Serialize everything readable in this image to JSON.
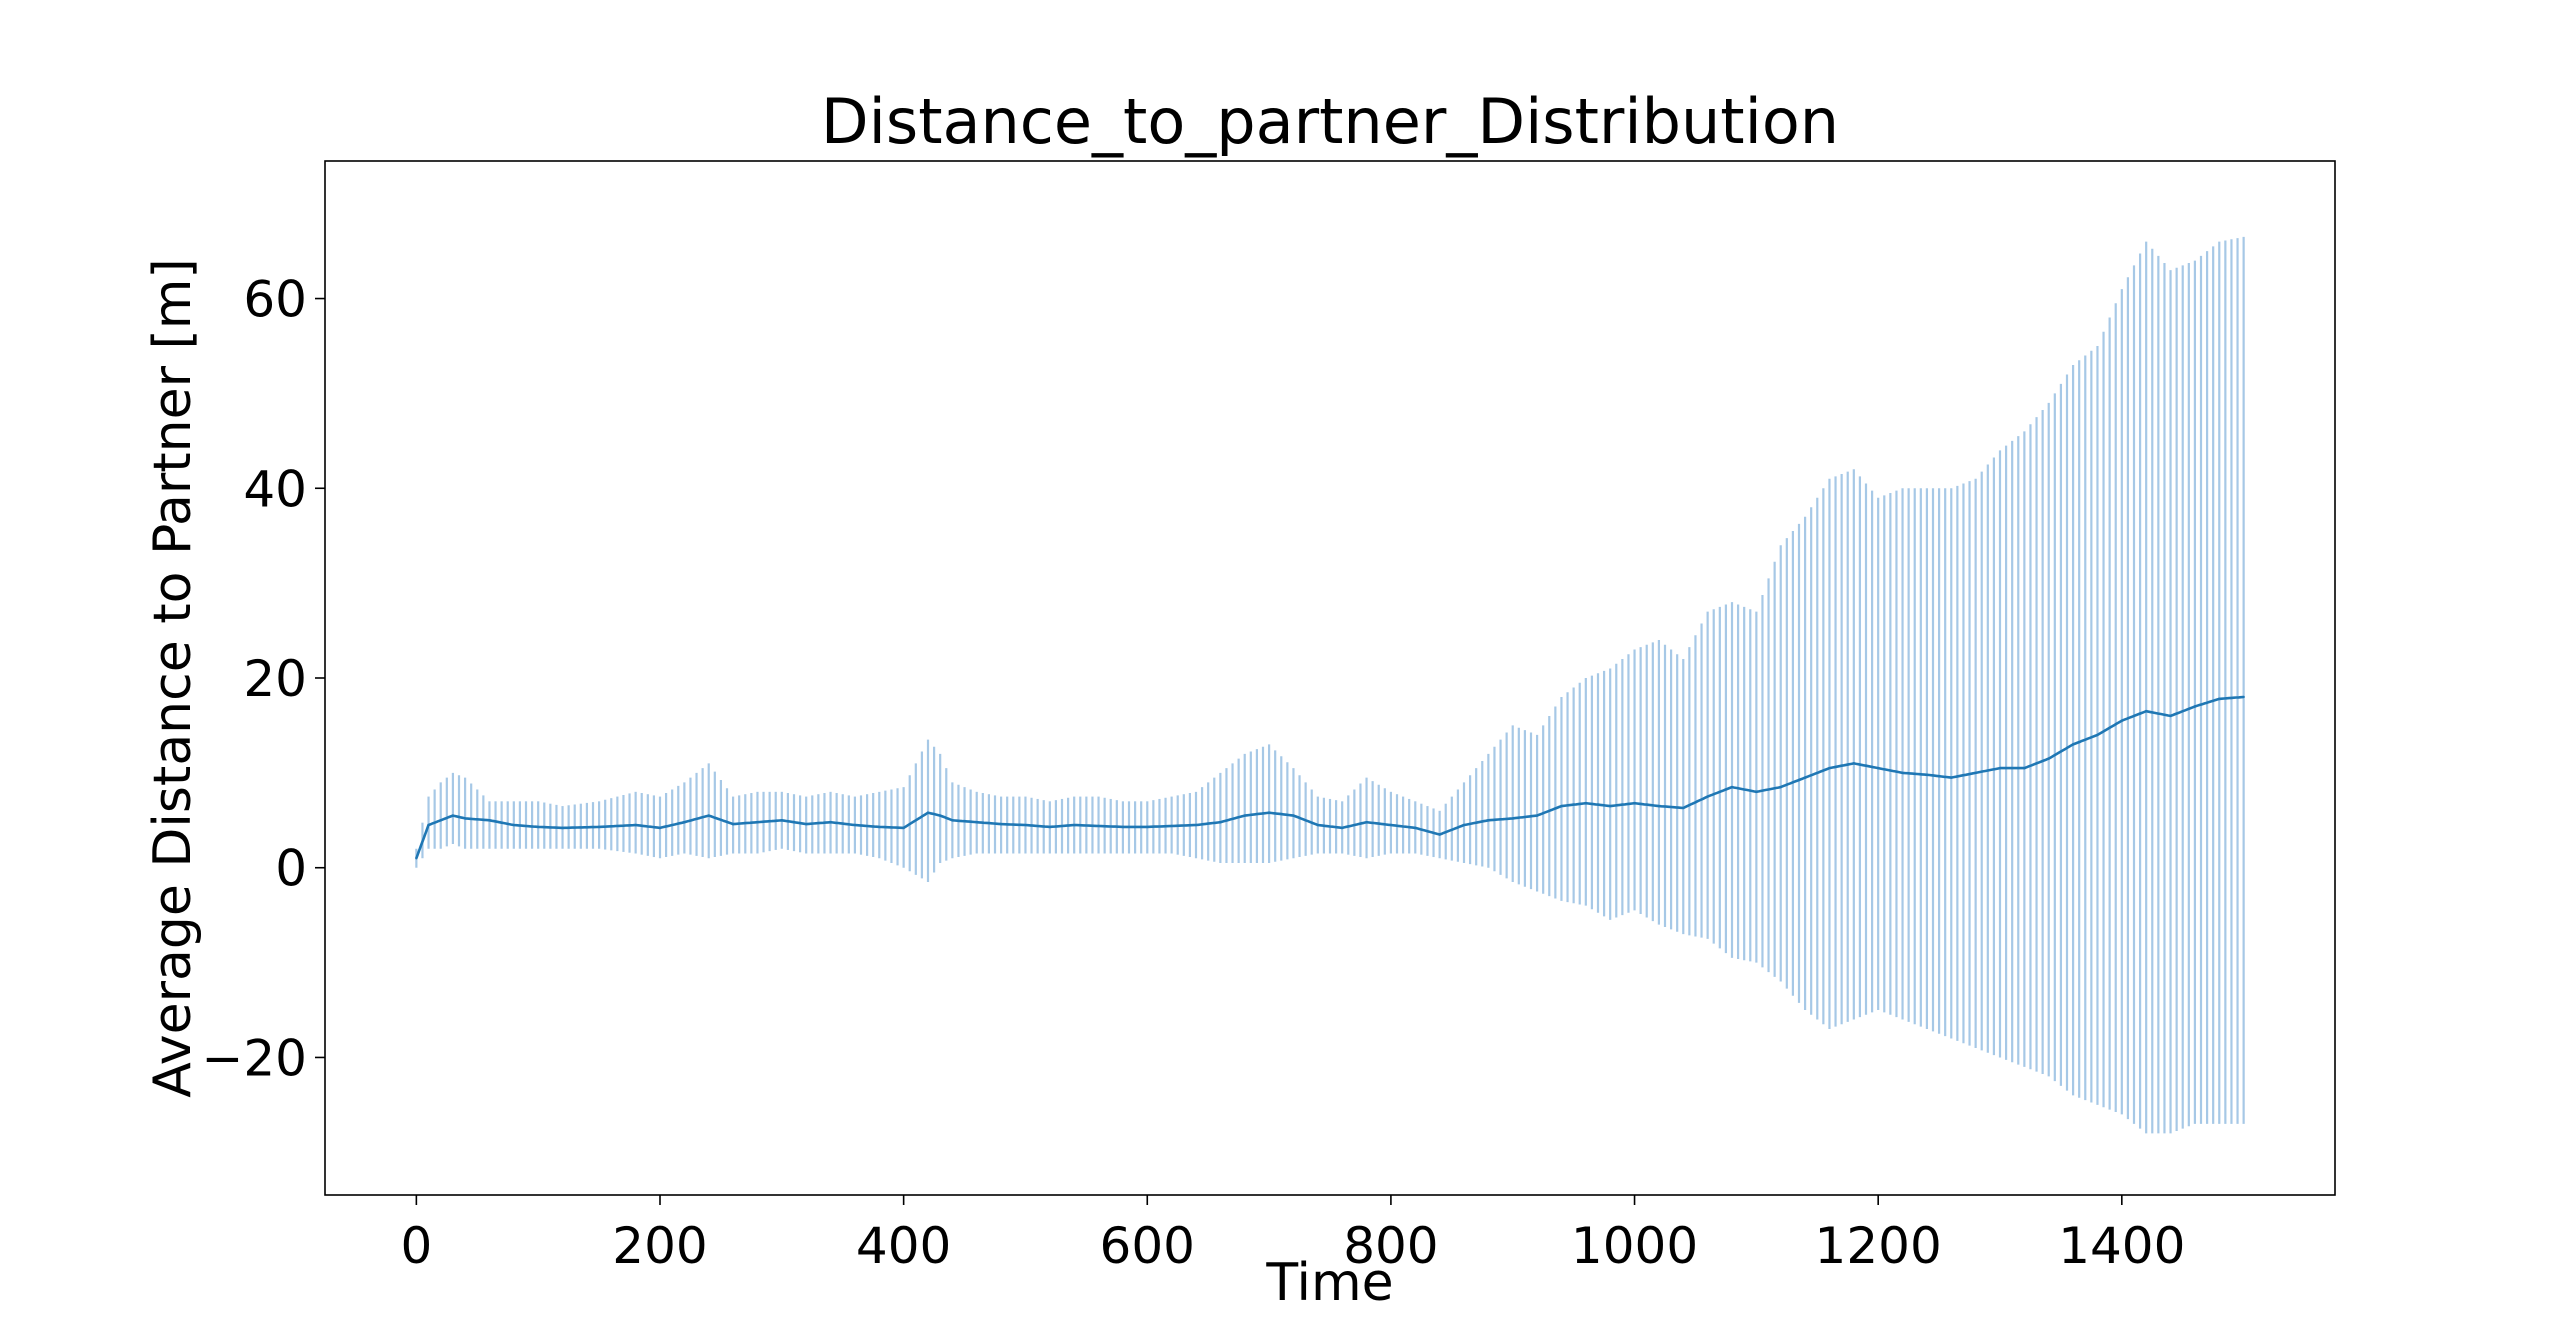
{
  "chart_data": {
    "type": "line",
    "title": "Distance_to_partner_Distribution",
    "xlabel": "Time",
    "ylabel": "Average Distance to Partner [m]",
    "xlim": [
      -75,
      1575
    ],
    "ylim": [
      -34.5,
      74.5
    ],
    "x_ticks": [
      0,
      200,
      400,
      600,
      800,
      1000,
      1200,
      1400
    ],
    "y_ticks": [
      -20,
      0,
      20,
      40,
      60
    ],
    "x_tick_labels": [
      "0",
      "200",
      "400",
      "600",
      "800",
      "1000",
      "1200",
      "1400"
    ],
    "y_tick_labels": [
      "−20",
      "0",
      "20",
      "40",
      "60"
    ],
    "grid": false,
    "series": [
      {
        "color": "#1f77b4",
        "band_color": "#a6c8e6",
        "x": [
          0,
          10,
          20,
          30,
          40,
          60,
          80,
          100,
          120,
          150,
          180,
          200,
          220,
          240,
          260,
          280,
          300,
          320,
          340,
          360,
          380,
          400,
          420,
          430,
          440,
          460,
          480,
          500,
          520,
          540,
          560,
          580,
          600,
          620,
          640,
          660,
          680,
          700,
          720,
          740,
          760,
          780,
          800,
          820,
          840,
          860,
          880,
          900,
          920,
          940,
          960,
          980,
          1000,
          1020,
          1040,
          1060,
          1080,
          1100,
          1120,
          1140,
          1160,
          1180,
          1200,
          1220,
          1240,
          1260,
          1280,
          1300,
          1320,
          1340,
          1360,
          1380,
          1400,
          1420,
          1440,
          1460,
          1480,
          1500
        ],
        "mean": [
          1.0,
          4.5,
          5.0,
          5.5,
          5.2,
          5.0,
          4.5,
          4.3,
          4.2,
          4.3,
          4.5,
          4.2,
          4.8,
          5.5,
          4.6,
          4.8,
          5.0,
          4.6,
          4.8,
          4.5,
          4.3,
          4.2,
          5.8,
          5.5,
          5.0,
          4.8,
          4.6,
          4.5,
          4.3,
          4.5,
          4.4,
          4.3,
          4.3,
          4.4,
          4.5,
          4.8,
          5.5,
          5.8,
          5.5,
          4.5,
          4.2,
          4.8,
          4.5,
          4.2,
          3.5,
          4.5,
          5.0,
          5.2,
          5.5,
          6.5,
          6.8,
          6.5,
          6.8,
          6.5,
          6.3,
          7.5,
          8.5,
          8.0,
          8.5,
          9.5,
          10.5,
          11.0,
          10.5,
          10.0,
          9.8,
          9.5,
          10.0,
          10.5,
          10.5,
          11.5,
          13.0,
          14.0,
          15.5,
          16.5,
          16.0,
          17.0,
          17.8,
          18.0
        ],
        "upper": [
          2.0,
          7.5,
          9.0,
          10.0,
          9.5,
          7.0,
          7.0,
          7.0,
          6.5,
          7.0,
          8.0,
          7.5,
          9.0,
          11.0,
          7.5,
          8.0,
          8.0,
          7.5,
          8.0,
          7.5,
          8.0,
          8.5,
          13.5,
          12.0,
          9.0,
          8.0,
          7.5,
          7.5,
          7.0,
          7.5,
          7.5,
          7.0,
          7.0,
          7.5,
          8.0,
          10.0,
          12.0,
          13.0,
          10.5,
          7.5,
          7.0,
          9.5,
          8.0,
          7.0,
          6.0,
          9.0,
          12.0,
          15.0,
          14.0,
          18.0,
          20.0,
          21.0,
          23.0,
          24.0,
          22.0,
          27.0,
          28.0,
          27.0,
          34.0,
          37.0,
          41.0,
          42.0,
          39.0,
          40.0,
          40.0,
          40.0,
          41.0,
          44.0,
          46.0,
          49.0,
          53.0,
          55.0,
          61.0,
          66.0,
          63.0,
          64.0,
          66.0,
          66.5
        ],
        "lower": [
          0.0,
          2.0,
          2.0,
          2.5,
          2.0,
          2.0,
          2.0,
          2.0,
          2.0,
          2.0,
          1.5,
          1.0,
          1.5,
          1.0,
          1.5,
          1.5,
          2.0,
          1.5,
          1.5,
          1.5,
          1.0,
          0.0,
          -1.5,
          0.5,
          1.0,
          1.5,
          1.5,
          1.5,
          1.5,
          1.5,
          1.5,
          1.5,
          1.5,
          1.5,
          1.0,
          0.5,
          0.5,
          0.5,
          1.0,
          1.5,
          1.5,
          1.0,
          1.5,
          1.5,
          1.0,
          0.5,
          0.0,
          -1.5,
          -2.5,
          -3.5,
          -4.0,
          -5.5,
          -4.5,
          -6.0,
          -7.0,
          -7.5,
          -9.5,
          -10.0,
          -12.0,
          -15.0,
          -17.0,
          -16.0,
          -15.0,
          -16.0,
          -17.0,
          -18.0,
          -19.0,
          -20.0,
          -21.0,
          -22.0,
          -24.0,
          -25.0,
          -26.0,
          -28.0,
          -28.0,
          -27.0,
          -27.0,
          -27.0
        ]
      }
    ]
  }
}
